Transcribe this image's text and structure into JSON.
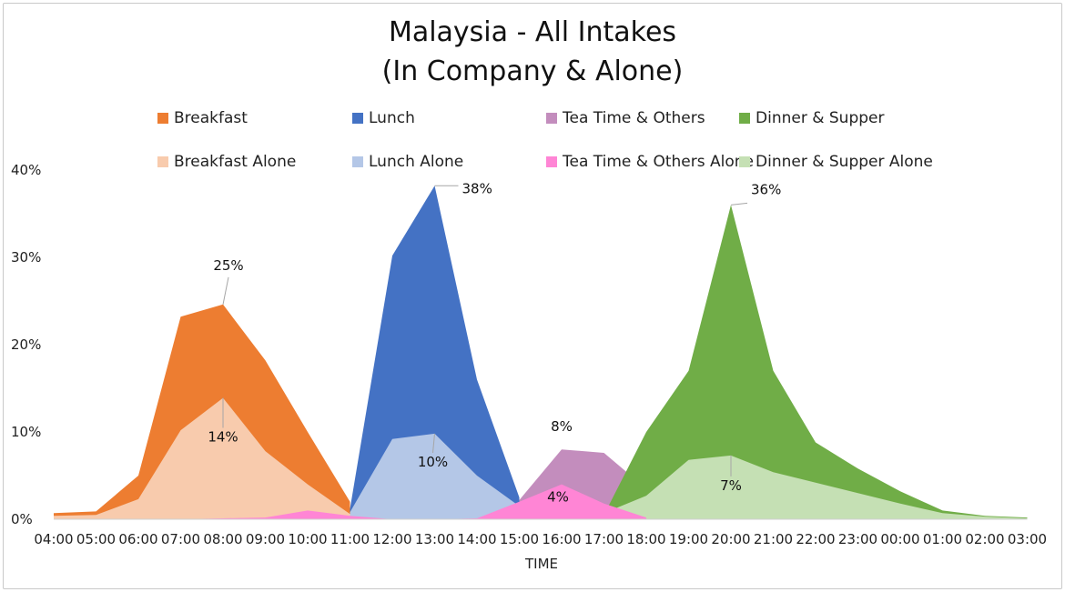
{
  "chart_data": {
    "type": "area",
    "title": "Malaysia - All Intakes",
    "subtitle": "(In Company & Alone)",
    "xlabel": "TIME",
    "ylabel": "",
    "ylim": [
      0,
      40
    ],
    "yticks": [
      {
        "v": 0,
        "label": "0%"
      },
      {
        "v": 10,
        "label": "10%"
      },
      {
        "v": 20,
        "label": "20%"
      },
      {
        "v": 30,
        "label": "30%"
      },
      {
        "v": 40,
        "label": "40%"
      }
    ],
    "grid": false,
    "legend_position": "top",
    "categories": [
      "04:00",
      "05:00",
      "06:00",
      "07:00",
      "08:00",
      "09:00",
      "10:00",
      "11:00",
      "12:00",
      "13:00",
      "14:00",
      "15:00",
      "16:00",
      "17:00",
      "18:00",
      "19:00",
      "20:00",
      "21:00",
      "22:00",
      "23:00",
      "00:00",
      "01:00",
      "02:00",
      "03:00"
    ],
    "series": [
      {
        "name": "Breakfast",
        "color": "#ed7d31",
        "values": [
          0.7,
          0.9,
          5.0,
          23.2,
          24.6,
          18.2,
          10.0,
          2.0,
          null,
          null,
          null,
          null,
          null,
          null,
          null,
          null,
          null,
          null,
          null,
          null,
          null,
          null,
          null,
          null
        ]
      },
      {
        "name": "Breakfast Alone",
        "color": "#f8cbad",
        "values": [
          0.4,
          0.5,
          2.3,
          10.2,
          13.9,
          7.8,
          4.0,
          0.6,
          null,
          null,
          null,
          null,
          null,
          null,
          null,
          null,
          null,
          null,
          null,
          null,
          null,
          null,
          null,
          null
        ]
      },
      {
        "name": "Lunch",
        "color": "#4472c4",
        "values": [
          null,
          null,
          null,
          null,
          null,
          null,
          null,
          1.2,
          30.2,
          38.2,
          16.0,
          2.5,
          null,
          null,
          null,
          null,
          null,
          null,
          null,
          null,
          null,
          null,
          null,
          null
        ]
      },
      {
        "name": "Lunch Alone",
        "color": "#b4c7e7",
        "values": [
          null,
          null,
          null,
          null,
          null,
          null,
          null,
          0.8,
          9.2,
          9.8,
          5.0,
          1.5,
          null,
          null,
          null,
          null,
          null,
          null,
          null,
          null,
          null,
          null,
          null,
          null
        ]
      },
      {
        "name": "Tea Time & Others",
        "color": "#c38dbd",
        "values": [
          null,
          null,
          null,
          null,
          null,
          null,
          null,
          null,
          null,
          null,
          null,
          2.2,
          8.0,
          7.6,
          3.5,
          null,
          null,
          null,
          null,
          null,
          null,
          null,
          null,
          null
        ]
      },
      {
        "name": "Tea Time & Others Alone",
        "color": "#ff85d5",
        "values": [
          0,
          0,
          0,
          0,
          0.1,
          0.2,
          1.0,
          0.4,
          0,
          0,
          0.1,
          2.0,
          4.0,
          1.8,
          0.2,
          null,
          null,
          null,
          null,
          null,
          null,
          null,
          null,
          null
        ]
      },
      {
        "name": "Dinner & Supper",
        "color": "#70ad47",
        "values": [
          null,
          null,
          null,
          null,
          null,
          null,
          null,
          null,
          null,
          null,
          null,
          null,
          null,
          0.5,
          10.0,
          17.0,
          36.0,
          17.0,
          8.8,
          5.8,
          3.2,
          1.0,
          0.4,
          0.2
        ]
      },
      {
        "name": "Dinner & Supper Alone",
        "color": "#c5e0b4",
        "values": [
          null,
          null,
          null,
          null,
          null,
          null,
          null,
          null,
          null,
          null,
          null,
          null,
          0.3,
          0.7,
          2.7,
          6.8,
          7.3,
          5.4,
          4.2,
          3.0,
          1.8,
          0.7,
          0.3,
          0.1
        ]
      }
    ],
    "draw_order": [
      "Tea Time & Others",
      "Breakfast",
      "Breakfast Alone",
      "Lunch",
      "Lunch Alone",
      "Dinner & Supper",
      "Dinner & Supper Alone",
      "Tea Time & Others Alone"
    ],
    "annotations": [
      {
        "text": "25%",
        "x": "08:00",
        "y": 24.6,
        "series": "Breakfast"
      },
      {
        "text": "14%",
        "x": "08:00",
        "y": 13.9,
        "series": "Breakfast Alone"
      },
      {
        "text": "38%",
        "x": "13:00",
        "y": 38.2,
        "series": "Lunch"
      },
      {
        "text": "10%",
        "x": "13:00",
        "y": 9.8,
        "series": "Lunch Alone"
      },
      {
        "text": "8%",
        "x": "16:00",
        "y": 8.0,
        "series": "Tea Time & Others"
      },
      {
        "text": "4%",
        "x": "16:00",
        "y": 4.0,
        "series": "Tea Time & Others Alone"
      },
      {
        "text": "36%",
        "x": "20:00",
        "y": 36.0,
        "series": "Dinner & Supper"
      },
      {
        "text": "7%",
        "x": "20:00",
        "y": 7.3,
        "series": "Dinner & Supper Alone"
      }
    ]
  }
}
